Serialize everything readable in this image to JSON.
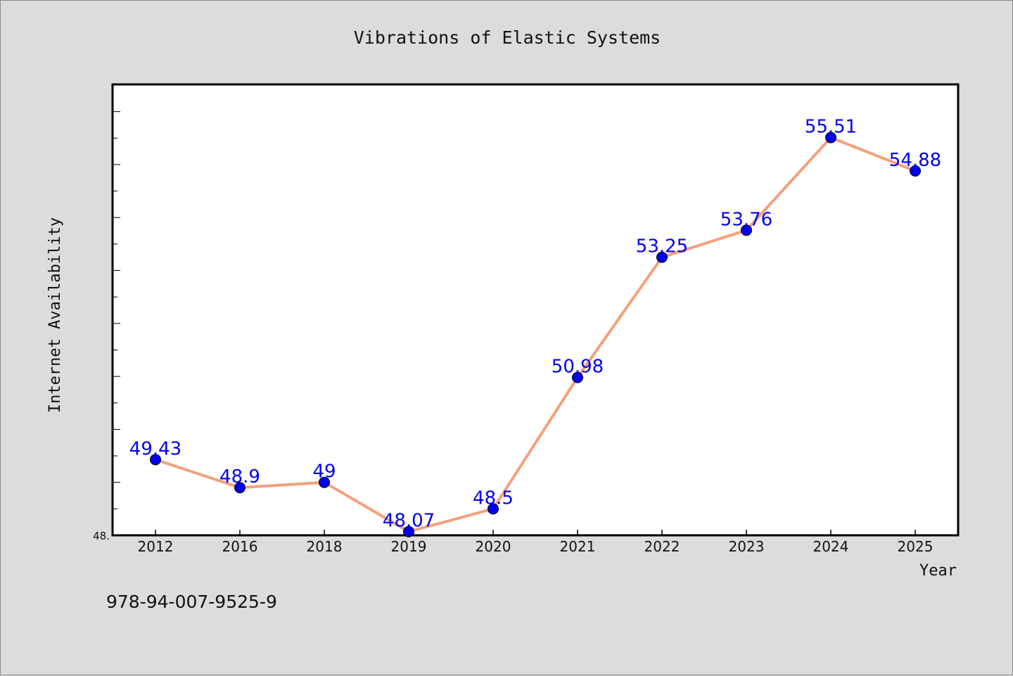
{
  "chart_data": {
    "type": "line",
    "title": "Vibrations of Elastic Systems",
    "xlabel": "Year",
    "ylabel": "Internet Availability",
    "categories": [
      "2012",
      "2016",
      "2018",
      "2019",
      "2020",
      "2021",
      "2022",
      "2023",
      "2024",
      "2025"
    ],
    "series": [
      {
        "values": [
          49.43,
          48.9,
          49,
          48.07,
          48.5,
          50.98,
          53.25,
          53.76,
          55.51,
          54.88
        ],
        "labels": [
          "49.43",
          "48.9",
          "49",
          "48.07",
          "48.5",
          "50.98",
          "53.25",
          "53.76",
          "55.51",
          "54.88"
        ],
        "line_color": "#f4a07c",
        "marker_color": "#0000ee",
        "label_color": "#0000ee"
      }
    ],
    "ylim": [
      48.0,
      56.5
    ],
    "y_tick_label": "48.",
    "grid": false,
    "legend": "none"
  },
  "footer": {
    "isbn": "978-94-007-9525-9"
  }
}
